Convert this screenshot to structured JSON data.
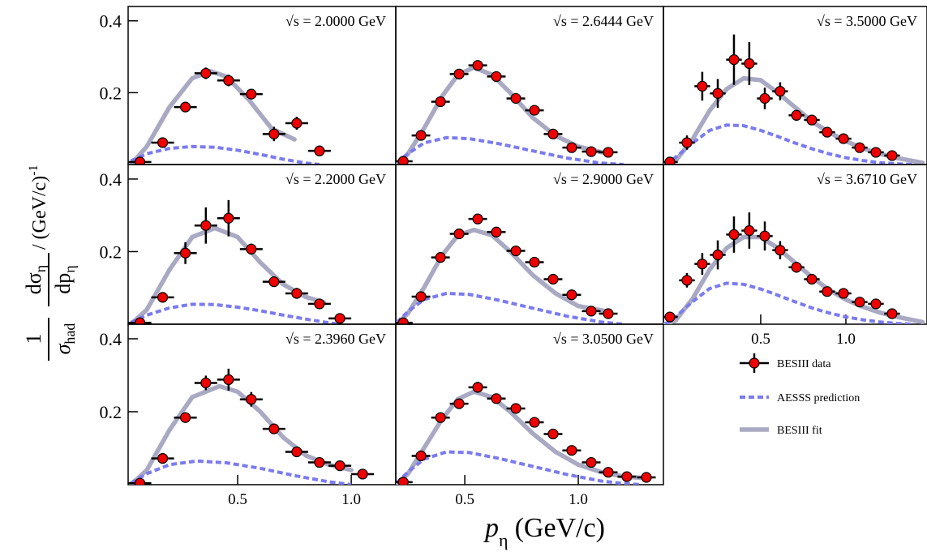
{
  "xlabel": {
    "symbol": "p",
    "sub": "η",
    "unit": "(GeV/c)"
  },
  "ylabel": {
    "num1": "1",
    "den1": "σ",
    "den1sub": "had",
    "num2": "dσ",
    "num2sub": "η",
    "den2": "dp",
    "den2sub": "η",
    "unit": "/ (GeV/c)",
    "unitsup": "-1"
  },
  "chart_data": [
    {
      "type": "errorbar",
      "label": "√s = 2.0000 GeV",
      "xlim": [
        0.018,
        1.196
      ],
      "ylim": [
        0,
        0.44
      ],
      "yticks": [
        0.2,
        0.4
      ],
      "series": [
        {
          "name": "BESIII data",
          "color": "#ee0000",
          "x": [
            0.07,
            0.17,
            0.27,
            0.36,
            0.46,
            0.56,
            0.66,
            0.76,
            0.86
          ],
          "values": [
            0.007,
            0.061,
            0.16,
            0.254,
            0.234,
            0.196,
            0.085,
            0.115,
            0.038
          ],
          "xerr": 0.05,
          "yerr": [
            0.004,
            0.01,
            0.012,
            0.016,
            0.016,
            0.012,
            0.02,
            0.018,
            0.008
          ]
        },
        {
          "name": "AESSS prediction",
          "color": "#7b7bef",
          "x": [
            0.03,
            0.1,
            0.2,
            0.3,
            0.4,
            0.5,
            0.6,
            0.7,
            0.8,
            0.86
          ],
          "values": [
            0.01,
            0.03,
            0.045,
            0.05,
            0.048,
            0.04,
            0.028,
            0.015,
            0.004,
            0
          ]
        },
        {
          "name": "BESIII fit",
          "color": "#a9a9c3",
          "x": [
            0.03,
            0.1,
            0.2,
            0.3,
            0.38,
            0.45,
            0.55,
            0.65,
            0.75
          ],
          "values": [
            0,
            0.05,
            0.16,
            0.24,
            0.26,
            0.245,
            0.18,
            0.1,
            0.07
          ]
        }
      ]
    },
    {
      "type": "errorbar",
      "label": "√s = 2.2000 GeV",
      "xlim": [
        0.018,
        1.196
      ],
      "ylim": [
        0,
        0.44
      ],
      "yticks": [
        0.2,
        0.4
      ],
      "series": [
        {
          "color": "#ee0000",
          "x": [
            0.07,
            0.17,
            0.27,
            0.36,
            0.46,
            0.56,
            0.66,
            0.76,
            0.86,
            0.95
          ],
          "values": [
            0.004,
            0.074,
            0.196,
            0.272,
            0.292,
            0.207,
            0.117,
            0.085,
            0.056,
            0.016
          ],
          "xerr": 0.05,
          "yerr": [
            0.005,
            0.01,
            0.03,
            0.05,
            0.05,
            0.015,
            0.01,
            0.015,
            0.01,
            0.005
          ]
        },
        {
          "color": "#7b7bef",
          "x": [
            0.03,
            0.1,
            0.2,
            0.3,
            0.4,
            0.5,
            0.6,
            0.7,
            0.8,
            0.9,
            0.95
          ],
          "values": [
            0.005,
            0.025,
            0.045,
            0.055,
            0.054,
            0.047,
            0.037,
            0.025,
            0.014,
            0.004,
            0
          ]
        },
        {
          "color": "#a9a9c3",
          "x": [
            0.03,
            0.1,
            0.2,
            0.3,
            0.4,
            0.5,
            0.6,
            0.7,
            0.8,
            0.88
          ],
          "values": [
            0,
            0.04,
            0.15,
            0.24,
            0.265,
            0.24,
            0.17,
            0.11,
            0.075,
            0.06
          ]
        }
      ]
    },
    {
      "type": "errorbar",
      "label": "√s = 2.3960 GeV",
      "xlim": [
        0.018,
        1.196
      ],
      "ylim": [
        0,
        0.44
      ],
      "yticks": [
        0.2,
        0.4
      ],
      "xticks": [
        0.5,
        {
          "value": 1,
          "label": "1.0"
        }
      ],
      "series": [
        {
          "color": "#ee0000",
          "x": [
            0.07,
            0.17,
            0.27,
            0.36,
            0.46,
            0.56,
            0.66,
            0.76,
            0.86,
            0.95,
            1.05
          ],
          "values": [
            0.004,
            0.072,
            0.184,
            0.279,
            0.288,
            0.234,
            0.153,
            0.09,
            0.061,
            0.052,
            0.029
          ],
          "xerr": 0.05,
          "yerr": [
            0.005,
            0.01,
            0.01,
            0.02,
            0.03,
            0.02,
            0.01,
            0.01,
            0.01,
            0.008,
            0.006
          ]
        },
        {
          "color": "#7b7bef",
          "x": [
            0.03,
            0.1,
            0.2,
            0.32,
            0.45,
            0.6,
            0.75,
            0.9,
            1.0
          ],
          "values": [
            0.005,
            0.03,
            0.055,
            0.065,
            0.06,
            0.045,
            0.025,
            0.008,
            0
          ]
        },
        {
          "color": "#a9a9c3",
          "x": [
            0.03,
            0.1,
            0.2,
            0.3,
            0.42,
            0.5,
            0.6,
            0.7,
            0.8,
            0.9,
            1.0
          ],
          "values": [
            0,
            0.04,
            0.15,
            0.24,
            0.27,
            0.255,
            0.2,
            0.13,
            0.08,
            0.055,
            0.04
          ]
        }
      ]
    },
    {
      "type": "errorbar",
      "label": "√s = 2.6444 GeV",
      "xlim": [
        0.196,
        1.375
      ],
      "ylim": [
        0,
        0.44
      ],
      "series": [
        {
          "color": "#ee0000",
          "x": [
            0.229,
            0.307,
            0.393,
            0.475,
            0.557,
            0.639,
            0.725,
            0.807,
            0.889,
            0.971,
            1.057,
            1.132
          ],
          "values": [
            0.009,
            0.081,
            0.175,
            0.252,
            0.276,
            0.245,
            0.184,
            0.151,
            0.085,
            0.047,
            0.036,
            0.034
          ],
          "xerr": 0.041,
          "yerr": [
            0.004,
            0.008,
            0.01,
            0.012,
            0.014,
            0.012,
            0.01,
            0.01,
            0.008,
            0.006,
            0.005,
            0.005
          ]
        },
        {
          "color": "#7b7bef",
          "x": [
            0.2,
            0.25,
            0.32,
            0.42,
            0.52,
            0.65,
            0.8,
            0.95,
            1.1,
            1.2
          ],
          "values": [
            0.005,
            0.03,
            0.06,
            0.075,
            0.072,
            0.058,
            0.038,
            0.018,
            0.004,
            0
          ]
        },
        {
          "color": "#a9a9c3",
          "x": [
            0.2,
            0.25,
            0.32,
            0.4,
            0.47,
            0.54,
            0.62,
            0.7,
            0.8,
            0.9,
            1.0,
            1.13
          ],
          "values": [
            0,
            0.03,
            0.1,
            0.19,
            0.25,
            0.27,
            0.25,
            0.2,
            0.13,
            0.08,
            0.05,
            0.03
          ]
        }
      ]
    },
    {
      "type": "errorbar",
      "label": "√s = 2.9000 GeV",
      "xlim": [
        0.196,
        1.375
      ],
      "ylim": [
        0,
        0.44
      ],
      "series": [
        {
          "color": "#ee0000",
          "x": [
            0.229,
            0.307,
            0.393,
            0.475,
            0.557,
            0.639,
            0.725,
            0.807,
            0.889,
            0.971,
            1.057,
            1.132
          ],
          "values": [
            0.004,
            0.076,
            0.184,
            0.249,
            0.29,
            0.254,
            0.202,
            0.171,
            0.124,
            0.081,
            0.036,
            0.029
          ],
          "xerr": 0.041,
          "yerr": [
            0.004,
            0.008,
            0.012,
            0.014,
            0.014,
            0.012,
            0.01,
            0.01,
            0.008,
            0.006,
            0.005,
            0.005
          ]
        },
        {
          "color": "#7b7bef",
          "x": [
            0.2,
            0.25,
            0.32,
            0.42,
            0.52,
            0.65,
            0.8,
            0.95,
            1.1,
            1.2
          ],
          "values": [
            0.005,
            0.035,
            0.068,
            0.085,
            0.082,
            0.066,
            0.044,
            0.022,
            0.006,
            0
          ]
        },
        {
          "color": "#a9a9c3",
          "x": [
            0.2,
            0.25,
            0.32,
            0.4,
            0.47,
            0.54,
            0.62,
            0.7,
            0.8,
            0.9,
            1.0,
            1.13
          ],
          "values": [
            0,
            0.03,
            0.1,
            0.19,
            0.245,
            0.26,
            0.245,
            0.2,
            0.135,
            0.085,
            0.05,
            0.035
          ]
        }
      ]
    },
    {
      "type": "errorbar",
      "label": "√s = 3.0500 GeV",
      "xlim": [
        0.196,
        1.375
      ],
      "ylim": [
        0,
        0.44
      ],
      "xticks": [
        0.5,
        {
          "value": 1,
          "label": "1.0"
        }
      ],
      "series": [
        {
          "color": "#ee0000",
          "x": [
            0.229,
            0.307,
            0.393,
            0.475,
            0.557,
            0.639,
            0.725,
            0.807,
            0.889,
            0.971,
            1.057,
            1.132,
            1.214,
            1.3
          ],
          "values": [
            0.007,
            0.079,
            0.184,
            0.222,
            0.267,
            0.236,
            0.209,
            0.171,
            0.139,
            0.094,
            0.061,
            0.034,
            0.022,
            0.02
          ],
          "xerr": 0.041,
          "yerr": [
            0.004,
            0.008,
            0.01,
            0.012,
            0.015,
            0.012,
            0.01,
            0.01,
            0.008,
            0.007,
            0.006,
            0.005,
            0.004,
            0.004
          ]
        },
        {
          "color": "#7b7bef",
          "x": [
            0.2,
            0.25,
            0.32,
            0.42,
            0.52,
            0.65,
            0.8,
            0.95,
            1.1,
            1.2,
            1.28
          ],
          "values": [
            0.005,
            0.035,
            0.07,
            0.09,
            0.088,
            0.072,
            0.05,
            0.028,
            0.01,
            0.003,
            0
          ]
        },
        {
          "color": "#a9a9c3",
          "x": [
            0.2,
            0.25,
            0.32,
            0.4,
            0.47,
            0.54,
            0.62,
            0.7,
            0.8,
            0.9,
            1.0,
            1.1,
            1.2,
            1.3
          ],
          "values": [
            0,
            0.03,
            0.1,
            0.18,
            0.235,
            0.255,
            0.24,
            0.2,
            0.14,
            0.09,
            0.055,
            0.035,
            0.022,
            0.018
          ]
        }
      ]
    },
    {
      "type": "errorbar",
      "label": "√s = 3.5000 GeV",
      "xlim": [
        -0.071,
        1.476
      ],
      "ylim": [
        0,
        0.44
      ],
      "series": [
        {
          "color": "#ee0000",
          "x": [
            -0.033,
            0.067,
            0.157,
            0.248,
            0.343,
            0.433,
            0.524,
            0.614,
            0.71,
            0.8,
            0.89,
            0.986,
            1.081,
            1.176,
            1.271
          ],
          "values": [
            0.007,
            0.061,
            0.218,
            0.198,
            0.292,
            0.281,
            0.184,
            0.204,
            0.137,
            0.124,
            0.09,
            0.072,
            0.047,
            0.034,
            0.025
          ],
          "xerr": 0.046,
          "yerr": [
            0.01,
            0.02,
            0.04,
            0.04,
            0.07,
            0.06,
            0.03,
            0.025,
            0.015,
            0.01,
            0.01,
            0.01,
            0.008,
            0.006,
            0.005
          ]
        },
        {
          "color": "#7b7bef",
          "x": [
            -0.06,
            0,
            0.1,
            0.2,
            0.3,
            0.4,
            0.5,
            0.6,
            0.7,
            0.8,
            0.9,
            1.0,
            1.1,
            1.2,
            1.3,
            1.4
          ],
          "values": [
            0,
            0.02,
            0.06,
            0.095,
            0.11,
            0.108,
            0.095,
            0.078,
            0.06,
            0.044,
            0.03,
            0.019,
            0.011,
            0.005,
            0.002,
            0
          ]
        },
        {
          "color": "#a9a9c3",
          "x": [
            -0.06,
            0,
            0.1,
            0.2,
            0.3,
            0.4,
            0.5,
            0.6,
            0.7,
            0.8,
            0.9,
            1.0,
            1.1,
            1.2,
            1.3,
            1.45
          ],
          "values": [
            0,
            0.01,
            0.07,
            0.15,
            0.21,
            0.24,
            0.235,
            0.2,
            0.16,
            0.12,
            0.09,
            0.065,
            0.045,
            0.03,
            0.018,
            0.005
          ]
        }
      ]
    },
    {
      "type": "errorbar",
      "label": "√s = 3.6710 GeV",
      "xlim": [
        -0.071,
        1.476
      ],
      "ylim": [
        0,
        0.44
      ],
      "xticks": [
        0.5,
        {
          "value": 1,
          "label": "1.0"
        }
      ],
      "series": [
        {
          "color": "#ee0000",
          "x": [
            -0.033,
            0.067,
            0.157,
            0.248,
            0.343,
            0.433,
            0.524,
            0.614,
            0.71,
            0.8,
            0.89,
            0.986,
            1.081,
            1.176,
            1.271
          ],
          "values": [
            0.02,
            0.121,
            0.166,
            0.191,
            0.247,
            0.258,
            0.243,
            0.204,
            0.157,
            0.124,
            0.09,
            0.085,
            0.061,
            0.056,
            0.029
          ],
          "xerr": 0.046,
          "yerr": [
            0.008,
            0.02,
            0.03,
            0.04,
            0.05,
            0.05,
            0.04,
            0.025,
            0.015,
            0.012,
            0.01,
            0.01,
            0.008,
            0.007,
            0.005
          ]
        },
        {
          "color": "#7b7bef",
          "x": [
            -0.06,
            0,
            0.1,
            0.2,
            0.3,
            0.4,
            0.5,
            0.6,
            0.7,
            0.8,
            0.9,
            1.0,
            1.1,
            1.2,
            1.3,
            1.4
          ],
          "values": [
            0,
            0.02,
            0.062,
            0.098,
            0.113,
            0.11,
            0.097,
            0.08,
            0.062,
            0.045,
            0.031,
            0.02,
            0.012,
            0.006,
            0.002,
            0
          ]
        },
        {
          "color": "#a9a9c3",
          "x": [
            -0.06,
            0,
            0.1,
            0.2,
            0.3,
            0.4,
            0.5,
            0.6,
            0.7,
            0.8,
            0.9,
            1.0,
            1.1,
            1.2,
            1.3,
            1.45
          ],
          "values": [
            0,
            0.01,
            0.07,
            0.15,
            0.21,
            0.24,
            0.24,
            0.21,
            0.17,
            0.13,
            0.095,
            0.068,
            0.048,
            0.032,
            0.02,
            0.006
          ]
        }
      ]
    }
  ]
}
